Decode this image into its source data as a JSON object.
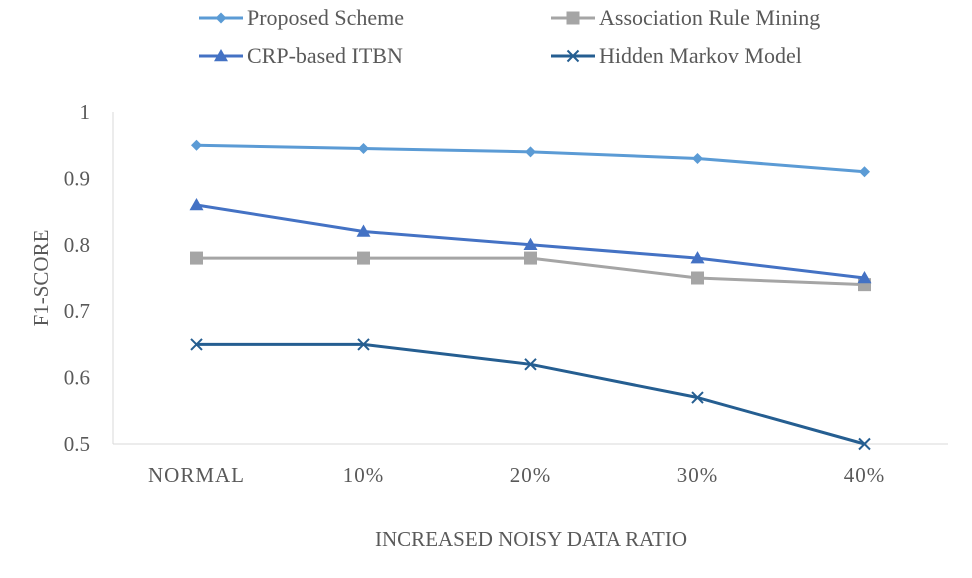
{
  "chart_data": {
    "type": "line",
    "title": "",
    "xlabel": "INCREASED NOISY DATA RATIO",
    "ylabel": "F1-SCORE",
    "categories": [
      "NORMAL",
      "10%",
      "20%",
      "30%",
      "40%"
    ],
    "ylim": [
      0.5,
      1.0
    ],
    "yticks": [
      "0.5",
      "0.6",
      "0.7",
      "0.8",
      "0.9",
      "1"
    ],
    "ytick_values": [
      0.5,
      0.6,
      0.7,
      0.8,
      0.9,
      1.0
    ],
    "grid": false,
    "legend_position": "top",
    "series": [
      {
        "name": "Proposed Scheme",
        "color": "#5B9BD5",
        "marker": "diamond",
        "values": [
          0.95,
          0.945,
          0.94,
          0.93,
          0.91
        ]
      },
      {
        "name": "Association Rule Mining",
        "color": "#A5A5A5",
        "marker": "square",
        "values": [
          0.78,
          0.78,
          0.78,
          0.75,
          0.74
        ]
      },
      {
        "name": "CRP-based ITBN",
        "color": "#4472C4",
        "marker": "triangle",
        "values": [
          0.86,
          0.82,
          0.8,
          0.78,
          0.75
        ]
      },
      {
        "name": "Hidden Markov Model",
        "color": "#255E91",
        "marker": "x",
        "values": [
          0.65,
          0.65,
          0.62,
          0.57,
          0.5
        ]
      }
    ]
  }
}
